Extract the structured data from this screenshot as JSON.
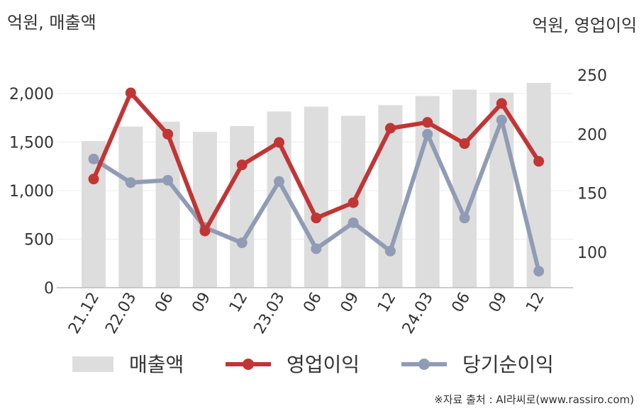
{
  "chart_data": {
    "type": "bar",
    "y_left_label": "억원, 매출액",
    "y_right_label": "억원, 영업이익",
    "categories": [
      "21.12",
      "22.03",
      "06",
      "09",
      "12",
      "23.03",
      "06",
      "09",
      "12",
      "24.03",
      "06",
      "09",
      "12"
    ],
    "y_left_ticks": [
      "0",
      "500",
      "1,000",
      "1,500",
      "2,000"
    ],
    "y_left_range": [
      0,
      2000
    ],
    "y_right_ticks": [
      "100",
      "150",
      "200",
      "250"
    ],
    "y_right_range": [
      100,
      250
    ],
    "grid": true,
    "legend_position": "bottom",
    "series": [
      {
        "name": "매출액",
        "kind": "bar",
        "axis": "left",
        "color": "#dddddd",
        "values": [
          1510,
          1660,
          1710,
          1605,
          1665,
          1815,
          1865,
          1770,
          1880,
          1975,
          2040,
          2010,
          2110
        ]
      },
      {
        "name": "영업이익",
        "kind": "line",
        "axis": "right",
        "color": "#c23535",
        "values": [
          162,
          235,
          200,
          118,
          174,
          193,
          129,
          142,
          205,
          210,
          192,
          226,
          177
        ]
      },
      {
        "name": "당기순이익",
        "kind": "line",
        "axis": "right",
        "color": "#909cb5",
        "values": [
          179,
          159,
          161,
          121,
          108,
          160,
          103,
          125,
          101,
          200,
          129,
          212,
          84
        ]
      }
    ]
  },
  "source": "※자료 출처 : AI라씨로(www.rassiro.com)"
}
